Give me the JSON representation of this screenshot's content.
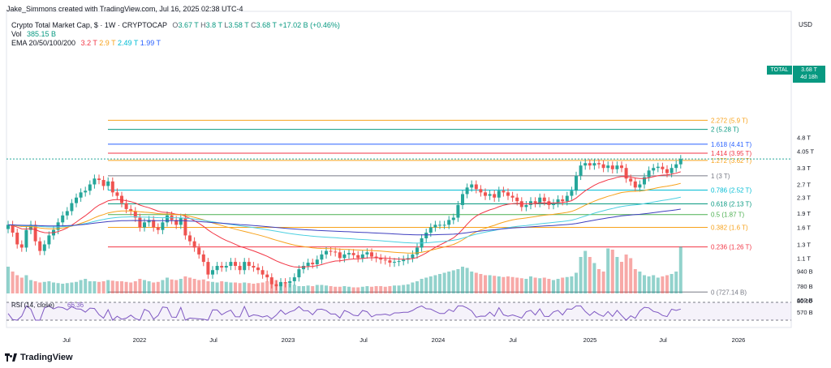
{
  "header": {
    "author_line": "Jake_Simmons created with TradingView.com, Jul 16, 2025 02:38 UTC-4",
    "symbol_line": "Crypto Total Market Cap, $ · 1W · CRYPTOCAP",
    "ohlc": {
      "o_label": "O",
      "o": "3.67 T",
      "h_label": "H",
      "h": "3.8 T",
      "l_label": "L",
      "l": "3.58 T",
      "c_label": "C",
      "c": "3.68 T",
      "change": "+17.02 B (+0.46%)"
    },
    "vol_label": "Vol",
    "vol_value": "385.15 B",
    "ema_label": "EMA 20/50/100/200",
    "ema_values": [
      "3.2 T",
      "2.9 T",
      "2.49 T",
      "1.99 T"
    ],
    "currency": "USD"
  },
  "price_axis": [
    "4.8 T",
    "4.05 T",
    "3.3 T",
    "2.7 T",
    "2.3 T",
    "1.9 T",
    "1.6 T",
    "1.3 T",
    "1.1 T",
    "940 B",
    "780 B",
    "660 B",
    "570 B"
  ],
  "time_axis": [
    "Jul",
    "2022",
    "Jul",
    "2023",
    "Jul",
    "2024",
    "Jul",
    "2025",
    "Jul",
    "2026"
  ],
  "current": {
    "symbol": "TOTAL",
    "price": "3.68 T",
    "countdown": "4d 18h"
  },
  "fib_levels": [
    {
      "label": "2.272 (5.9 T)",
      "color": "#f7a21b"
    },
    {
      "label": "2 (5.28 T)",
      "color": "#089981"
    },
    {
      "label": "1.618 (4.41 T)",
      "color": "#2962ff"
    },
    {
      "label": "1.414 (3.95 T)",
      "color": "#f23645"
    },
    {
      "label": "1.272 (3.62 T)",
      "color": "#f7a21b"
    },
    {
      "label": "1 (3 T)",
      "color": "#787b86"
    },
    {
      "label": "0.786 (2.52 T)",
      "color": "#00bcd4"
    },
    {
      "label": "0.618 (2.13 T)",
      "color": "#089981"
    },
    {
      "label": "0.5 (1.87 T)",
      "color": "#4caf50"
    },
    {
      "label": "0.382 (1.6 T)",
      "color": "#f7a21b"
    },
    {
      "label": "0.236 (1.26 T)",
      "color": "#f23645"
    },
    {
      "label": "0 (727.14 B)",
      "color": "#787b86"
    }
  ],
  "rsi": {
    "label": "RSI (14, close)",
    "value": "66.36",
    "axis_label": "80.00"
  },
  "branding": "TradingView",
  "colors": {
    "up": "#26a69a",
    "down": "#ef5350",
    "ema20": "#f23645",
    "ema50": "#f7a21b",
    "ema100": "#4dd0e1",
    "ema200": "#3f3fbf",
    "rsi": "#7e57c2"
  },
  "chart_data": {
    "type": "candlestick",
    "title": "Crypto Total Market Cap, $ · 1W · CRYPTOCAP",
    "y_scale": "log",
    "ylim": [
      520,
      5900
    ],
    "y_unit": "B USD",
    "x_start": "2021-04",
    "x_end": "2026-06",
    "fib_values": [
      5900,
      5280,
      4410,
      3950,
      3620,
      3000,
      2520,
      2130,
      1870,
      1600,
      1260,
      727.14
    ],
    "closes_bn": [
      1650,
      1500,
      1300,
      1250,
      1550,
      1650,
      1350,
      1200,
      1300,
      1450,
      1550,
      1700,
      1850,
      1950,
      2150,
      2300,
      2450,
      2500,
      2700,
      2900,
      2850,
      2650,
      2800,
      2450,
      2350,
      2150,
      2000,
      1950,
      1800,
      1600,
      1700,
      1750,
      1600,
      1550,
      1700,
      1850,
      1750,
      1650,
      1800,
      1450,
      1350,
      1250,
      1150,
      1050,
      900,
      950,
      1000,
      980,
      1000,
      1050,
      1000,
      950,
      1050,
      1000,
      980,
      950,
      900,
      870,
      800,
      780,
      820,
      810,
      830,
      870,
      960,
      1000,
      1040,
      1020,
      1080,
      1150,
      1200,
      1190,
      1180,
      1100,
      1150,
      1170,
      1140,
      1100,
      1150,
      1180,
      1120,
      1100,
      1080,
      1070,
      1040,
      1050,
      1060,
      1080,
      1100,
      1150,
      1250,
      1400,
      1500,
      1600,
      1650,
      1650,
      1650,
      1750,
      1800,
      2100,
      2400,
      2600,
      2700,
      2550,
      2450,
      2350,
      2400,
      2300,
      2500,
      2450,
      2350,
      2300,
      2200,
      2050,
      2100,
      2200,
      2150,
      2300,
      2200,
      2100,
      2150,
      2250,
      2200,
      2350,
      2500,
      3000,
      3400,
      3500,
      3400,
      3500,
      3450,
      3300,
      3400,
      3250,
      3400,
      3300,
      2900,
      2800,
      2600,
      2700,
      2950,
      3200,
      3300,
      3350,
      3250,
      3100,
      3300,
      3450,
      3680
    ],
    "volumes_bn": [
      220,
      180,
      150,
      130,
      150,
      110,
      100,
      90,
      95,
      100,
      90,
      85,
      80,
      85,
      90,
      95,
      110,
      120,
      100,
      100,
      95,
      100,
      110,
      105,
      100,
      100,
      95,
      90,
      100,
      120,
      110,
      100,
      90,
      95,
      110,
      130,
      115,
      110,
      120,
      140,
      130,
      120,
      110,
      115,
      100,
      95,
      90,
      100,
      95,
      90,
      90,
      85,
      90,
      85,
      80,
      85,
      90,
      100,
      105,
      110,
      95,
      90,
      80,
      70,
      60,
      60,
      65,
      60,
      70,
      70,
      65,
      60,
      55,
      55,
      60,
      55,
      50,
      50,
      55,
      60,
      55,
      60,
      60,
      55,
      60,
      65,
      65,
      70,
      75,
      90,
      100,
      120,
      130,
      140,
      150,
      160,
      170,
      180,
      190,
      200,
      220,
      210,
      180,
      170,
      160,
      150,
      150,
      145,
      140,
      135,
      140,
      135,
      130,
      125,
      120,
      140,
      130,
      125,
      130,
      120,
      110,
      120,
      130,
      135,
      140,
      170,
      300,
      350,
      300,
      250,
      200,
      180,
      370,
      360,
      300,
      260,
      320,
      290,
      200,
      180,
      150,
      140,
      150,
      130,
      140,
      150,
      160,
      180,
      385
    ]
  }
}
